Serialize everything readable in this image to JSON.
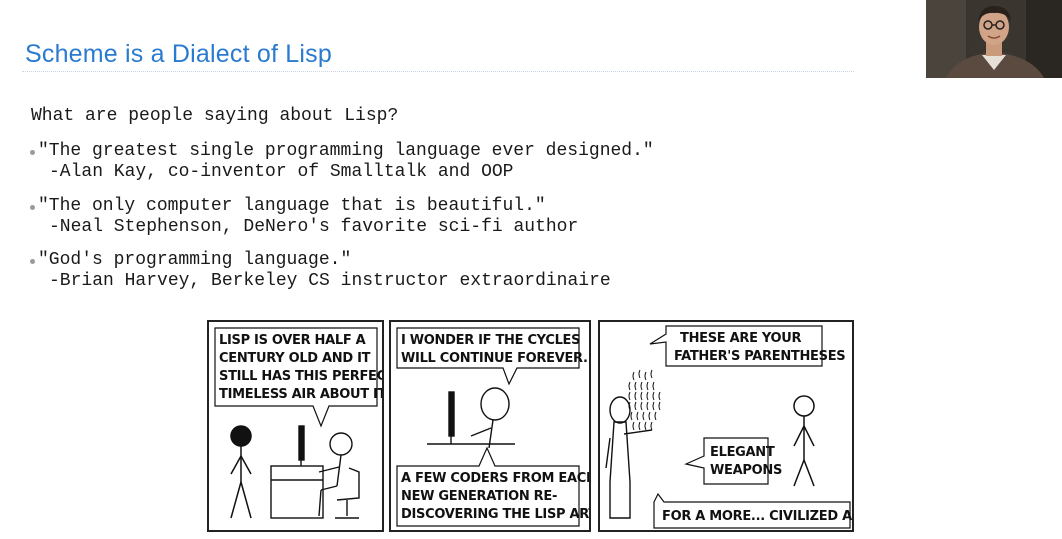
{
  "slide": {
    "title": "Scheme is a Dialect of Lisp",
    "question": "What are people saying about Lisp?",
    "accent_color": "#2a7bd0"
  },
  "quotes": [
    {
      "quote": "\"The greatest single programming language ever designed.\"",
      "attribution": "-Alan Kay, co-inventor of Smalltalk and OOP"
    },
    {
      "quote": "\"The only computer language that is beautiful.\"",
      "attribution": "-Neal Stephenson, DeNero's favorite sci-fi author"
    },
    {
      "quote": "\"God's programming language.\"",
      "attribution": "-Brian Harvey, Berkeley CS instructor extraordinaire"
    }
  ],
  "comic": {
    "panel1": {
      "lines": [
        "LISP IS OVER HALF A",
        "CENTURY OLD AND IT",
        "STILL HAS THIS PERFECT,",
        "TIMELESS AIR ABOUT IT."
      ]
    },
    "panel2": {
      "top_lines": [
        "I WONDER IF THE CYCLES",
        "WILL CONTINUE FOREVER."
      ],
      "bottom_lines": [
        "A FEW CODERS FROM EACH",
        "NEW GENERATION RE-",
        "DISCOVERING THE LISP ARTS."
      ]
    },
    "panel3": {
      "top_lines": [
        "THESE ARE YOUR",
        "FATHER'S PARENTHESES"
      ],
      "mid_lines": [
        "ELEGANT",
        "WEAPONS"
      ],
      "bottom_line": "FOR A MORE... CIVILIZED AGE."
    }
  },
  "webcam": {
    "icon": "presenter-video-feed"
  }
}
